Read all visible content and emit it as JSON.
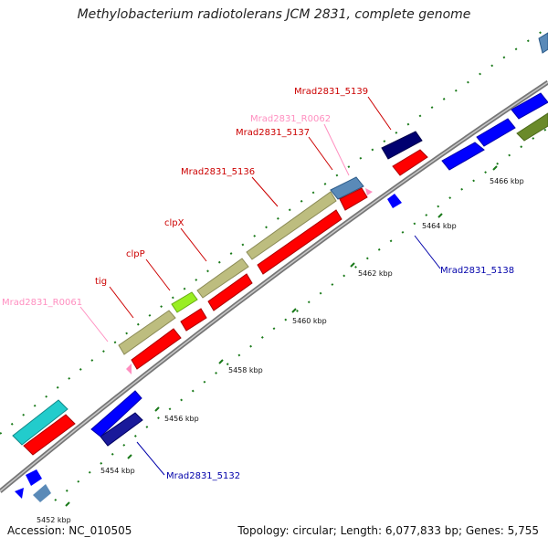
{
  "title": "Methylobacterium radiotolerans JCM 2831, complete genome",
  "footer": {
    "accession": "Accession: NC_010505",
    "topology": "Topology: circular; Length: 6,077,833 bp; Genes: 5,755"
  },
  "colors": {
    "red_gene": "#ff0000",
    "dark_blue_gene": "#00007f",
    "blue_gene": "#0000ff",
    "olive_gene": "#bdbd7f",
    "rrna_pink": "#ff8fc0",
    "backbone": "#8a8a8a",
    "tick_green": "#1a7a1a"
  },
  "ticks": [
    {
      "label": "5452 kbp"
    },
    {
      "label": "5454 kbp"
    },
    {
      "label": "5456 kbp"
    },
    {
      "label": "5458 kbp"
    },
    {
      "label": "5460 kbp"
    },
    {
      "label": "5462 kbp"
    },
    {
      "label": "5464 kbp"
    },
    {
      "label": "5466 kbp"
    }
  ],
  "labels": [
    {
      "text": "Mrad2831_5139",
      "color": "#cc0000"
    },
    {
      "text": "Mrad2831_R0062",
      "color": "#ff8fc0"
    },
    {
      "text": "Mrad2831_5137",
      "color": "#cc0000"
    },
    {
      "text": "Mrad2831_5136",
      "color": "#cc0000"
    },
    {
      "text": "clpX",
      "color": "#cc0000"
    },
    {
      "text": "clpP",
      "color": "#cc0000"
    },
    {
      "text": "tig",
      "color": "#cc0000"
    },
    {
      "text": "Mrad2831_R0061",
      "color": "#ff8fc0"
    },
    {
      "text": "Mrad2831_5138",
      "color": "#0000aa"
    },
    {
      "text": "Mrad2831_5132",
      "color": "#0000aa"
    }
  ]
}
